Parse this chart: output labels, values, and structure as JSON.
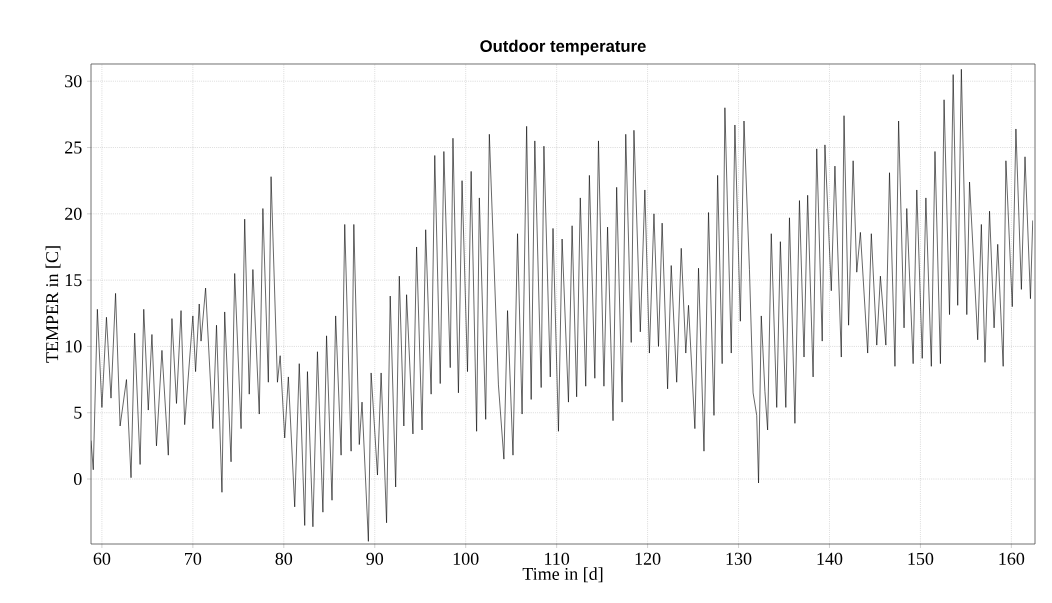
{
  "chart_data": {
    "type": "line",
    "title": "Outdoor temperature",
    "xlabel": "Time in [d]",
    "ylabel": "TEMPER in [C]",
    "xlim": [
      58.8,
      162.6
    ],
    "ylim": [
      -4.9,
      31.3
    ],
    "xticks": [
      60,
      70,
      80,
      90,
      100,
      110,
      120,
      130,
      140,
      150,
      160
    ],
    "yticks": [
      0,
      5,
      10,
      15,
      20,
      25,
      30
    ],
    "grid": true,
    "line_style": "solid",
    "series": [
      {
        "color": "#000000",
        "x": [
          58.8,
          59.05,
          59.5,
          60.0,
          60.5,
          61.0,
          61.5,
          62.0,
          62.7,
          63.2,
          63.6,
          64.2,
          64.6,
          65.1,
          65.5,
          66.0,
          66.6,
          67.3,
          67.7,
          68.2,
          68.7,
          69.1,
          70.0,
          70.3,
          70.7,
          70.9,
          71.4,
          72.2,
          72.6,
          73.2,
          73.5,
          74.2,
          74.6,
          75.3,
          75.7,
          76.2,
          76.6,
          77.3,
          77.7,
          78.3,
          78.6,
          79.3,
          79.6,
          80.1,
          80.5,
          81.2,
          81.7,
          82.3,
          82.6,
          83.2,
          83.7,
          84.3,
          84.7,
          85.3,
          85.7,
          86.3,
          86.7,
          87.4,
          87.7,
          88.3,
          88.6,
          89.3,
          89.6,
          90.3,
          90.7,
          91.3,
          91.7,
          92.3,
          92.7,
          93.2,
          93.5,
          94.2,
          94.6,
          95.2,
          95.6,
          96.2,
          96.6,
          97.2,
          97.6,
          98.3,
          98.6,
          99.2,
          99.6,
          100.2,
          100.6,
          101.2,
          101.5,
          102.2,
          102.6,
          103.6,
          104.2,
          104.6,
          105.2,
          105.7,
          106.2,
          106.7,
          107.2,
          107.6,
          108.3,
          108.6,
          109.3,
          109.6,
          110.2,
          110.6,
          111.3,
          111.7,
          112.2,
          112.6,
          113.2,
          113.6,
          114.2,
          114.6,
          115.2,
          115.6,
          116.2,
          116.6,
          117.2,
          117.6,
          118.2,
          118.5,
          119.2,
          119.7,
          120.2,
          120.7,
          121.2,
          121.6,
          122.2,
          122.6,
          123.2,
          123.7,
          124.2,
          124.5,
          125.2,
          125.6,
          126.2,
          126.7,
          127.3,
          127.7,
          128.2,
          128.5,
          129.2,
          129.6,
          130.2,
          130.6,
          131.2,
          131.6,
          132.0,
          132.2,
          132.5,
          132.9,
          133.2,
          133.6,
          134.2,
          134.6,
          135.2,
          135.6,
          136.2,
          136.7,
          137.2,
          137.6,
          138.2,
          138.6,
          139.2,
          139.5,
          140.2,
          140.6,
          141.3,
          141.6,
          142.1,
          142.6,
          143.0,
          143.4,
          144.2,
          144.6,
          145.2,
          145.6,
          146.2,
          146.6,
          147.2,
          147.6,
          148.2,
          148.5,
          149.2,
          149.6,
          150.2,
          150.6,
          151.2,
          151.6,
          152.2,
          152.6,
          153.2,
          153.6,
          154.1,
          154.5,
          155.1,
          155.4,
          156.3,
          156.7,
          157.1,
          157.6,
          158.1,
          158.5,
          159.1,
          159.4,
          160.1,
          160.5,
          161.1,
          161.5,
          162.1,
          162.35
        ],
        "values": [
          2.9,
          0.7,
          12.8,
          5.4,
          12.2,
          6.1,
          14.0,
          4.0,
          7.5,
          0.1,
          11.0,
          1.1,
          12.8,
          5.2,
          10.9,
          2.5,
          9.7,
          1.8,
          12.1,
          5.7,
          12.7,
          4.1,
          12.3,
          8.1,
          13.2,
          10.4,
          14.4,
          3.8,
          11.6,
          -1.0,
          12.6,
          1.3,
          15.5,
          3.8,
          19.6,
          6.4,
          15.8,
          4.9,
          20.4,
          7.3,
          22.8,
          7.3,
          9.3,
          3.1,
          7.7,
          -2.1,
          8.7,
          -3.5,
          8.1,
          -3.6,
          9.6,
          -2.5,
          10.8,
          -1.6,
          12.3,
          1.8,
          19.2,
          2.1,
          19.2,
          2.6,
          5.8,
          -4.7,
          8.0,
          0.3,
          8.0,
          -3.3,
          13.8,
          -0.6,
          15.3,
          4.0,
          13.9,
          3.4,
          17.5,
          3.7,
          18.8,
          6.4,
          24.4,
          7.2,
          24.7,
          8.4,
          25.7,
          6.5,
          22.5,
          8.1,
          23.2,
          3.6,
          21.2,
          4.5,
          26.0,
          7.1,
          1.5,
          12.7,
          1.8,
          18.5,
          4.9,
          26.6,
          6.0,
          25.5,
          6.9,
          25.1,
          7.7,
          18.9,
          3.6,
          18.1,
          5.8,
          19.1,
          6.2,
          21.2,
          7.0,
          22.9,
          7.6,
          25.5,
          7.0,
          19.0,
          4.4,
          22.0,
          5.8,
          26.0,
          10.3,
          26.3,
          11.1,
          21.8,
          9.5,
          20.0,
          10.0,
          19.3,
          6.8,
          16.1,
          7.3,
          17.4,
          9.5,
          13.1,
          3.8,
          15.9,
          2.1,
          20.1,
          4.8,
          22.9,
          8.7,
          28.0,
          9.5,
          26.7,
          11.9,
          27.0,
          15.8,
          6.5,
          4.8,
          -0.3,
          12.3,
          6.6,
          3.7,
          18.5,
          5.4,
          17.9,
          5.4,
          19.7,
          4.2,
          21.0,
          9.2,
          21.4,
          7.7,
          24.9,
          10.4,
          25.2,
          14.2,
          23.6,
          9.2,
          27.4,
          11.6,
          24.0,
          15.6,
          18.6,
          9.5,
          18.5,
          10.1,
          15.3,
          10.1,
          23.1,
          8.5,
          27.0,
          11.4,
          20.4,
          8.7,
          21.8,
          9.1,
          21.2,
          8.5,
          24.7,
          8.7,
          28.6,
          12.4,
          30.5,
          13.1,
          30.9,
          12.4,
          22.4,
          10.5,
          19.2,
          8.8,
          20.2,
          11.4,
          17.7,
          8.5,
          24.0,
          13.0,
          26.4,
          14.3,
          24.3,
          13.6,
          19.5
        ]
      }
    ]
  }
}
